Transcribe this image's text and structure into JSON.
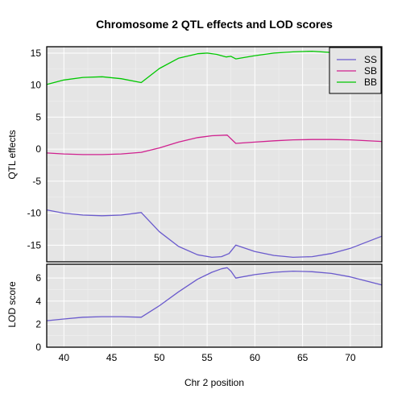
{
  "chart_data": {
    "title": "Chromosome 2 QTL effects and LOD scores",
    "xlabel": "Chr 2 position",
    "xlim": [
      38.2,
      73.3
    ],
    "xticks": [
      40,
      45,
      50,
      55,
      60,
      65,
      70
    ],
    "grid": true,
    "panels": [
      {
        "type": "line",
        "ylabel": "QTL effects",
        "ylim": [
          -17.6,
          16.0
        ],
        "yticks": [
          -15,
          -10,
          -5,
          0,
          5,
          10,
          15
        ],
        "legend": "top-right",
        "series": [
          {
            "name": "SS",
            "color": "#6a5acd",
            "x": [
              38.2,
              40,
              42,
              44,
              46,
              48.1,
              50,
              52,
              54,
              55.5,
              56.5,
              57.3,
              58,
              60,
              62,
              64,
              66,
              68,
              70,
              73.3
            ],
            "y": [
              -9.5,
              -10.0,
              -10.3,
              -10.4,
              -10.3,
              -9.9,
              -12.9,
              -15.2,
              -16.5,
              -16.9,
              -16.8,
              -16.3,
              -15.0,
              -16.0,
              -16.6,
              -16.9,
              -16.8,
              -16.3,
              -15.5,
              -13.6
            ]
          },
          {
            "name": "SB",
            "color": "#d0218f",
            "x": [
              38.2,
              40,
              42,
              44,
              46,
              48.1,
              50,
              52,
              54,
              55.5,
              57.1,
              58,
              60,
              62,
              64,
              66,
              68,
              70,
              73.3
            ],
            "y": [
              -0.6,
              -0.75,
              -0.85,
              -0.85,
              -0.75,
              -0.5,
              0.2,
              1.1,
              1.8,
              2.1,
              2.2,
              0.9,
              1.1,
              1.3,
              1.45,
              1.5,
              1.5,
              1.45,
              1.2
            ]
          },
          {
            "name": "BB",
            "color": "#00c800",
            "x": [
              38.2,
              40,
              42,
              44,
              46,
              48.1,
              50,
              52,
              54,
              55,
              56,
              57,
              57.5,
              58,
              60,
              62,
              64,
              66,
              68,
              70
            ],
            "y": [
              10.1,
              10.8,
              11.2,
              11.3,
              11.0,
              10.4,
              12.6,
              14.2,
              14.9,
              15.0,
              14.8,
              14.4,
              14.5,
              14.1,
              14.6,
              15.0,
              15.2,
              15.3,
              15.1,
              14.7
            ]
          }
        ]
      },
      {
        "type": "line",
        "ylabel": "LOD score",
        "ylim": [
          0,
          7.2
        ],
        "yticks": [
          0,
          2,
          4,
          6
        ],
        "series": [
          {
            "color": "#6a5acd",
            "x": [
              38.2,
              40,
              42,
              44,
              46,
              48.1,
              50,
              52,
              54,
              55.5,
              56.5,
              57.1,
              57.5,
              58,
              60,
              62,
              64,
              66,
              68,
              70,
              73.3
            ],
            "y": [
              2.3,
              2.45,
              2.6,
              2.65,
              2.65,
              2.6,
              3.6,
              4.8,
              5.9,
              6.5,
              6.8,
              6.9,
              6.6,
              6.0,
              6.3,
              6.5,
              6.6,
              6.55,
              6.4,
              6.1,
              5.4
            ]
          }
        ]
      }
    ]
  }
}
